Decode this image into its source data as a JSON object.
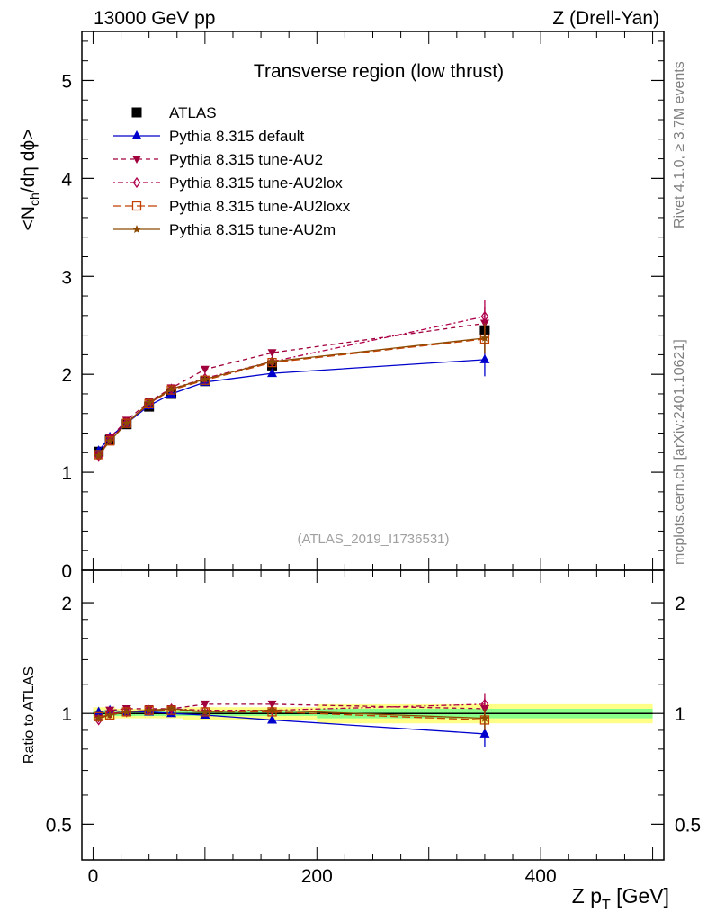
{
  "header": {
    "left": "13000 GeV pp",
    "right": "Z (Drell-Yan)"
  },
  "side_text": {
    "rivet": "Rivet 4.1.0, ≥ 3.7M events",
    "mcplots": "mcplots.cern.ch [arXiv:2401.10621]"
  },
  "chart_data": [
    {
      "type": "scatter",
      "panel": "main",
      "title": "Transverse region (low thrust)",
      "ylabel": "<N_ch/dη dϕ>",
      "xlim": [
        -10,
        510
      ],
      "ylim": [
        0,
        5.5
      ],
      "yticks": [
        0,
        1,
        2,
        3,
        4,
        5
      ],
      "watermark": "(ATLAS_2019_I1736531)",
      "legend_position": "top-left",
      "x": [
        5,
        15,
        30,
        50,
        70,
        100,
        160,
        350
      ],
      "series": [
        {
          "name": "ATLAS",
          "color": "#000000",
          "marker": "square",
          "dash": "none",
          "values": [
            1.21,
            1.33,
            1.49,
            1.67,
            1.8,
            1.93,
            2.09,
            2.45
          ]
        },
        {
          "name": "Pythia 8.315 default",
          "color": "#0000cc",
          "marker": "triangle-up",
          "dash": "solid",
          "values": [
            1.22,
            1.36,
            1.5,
            1.68,
            1.8,
            1.92,
            2.01,
            2.15
          ],
          "errors": [
            0,
            0,
            0,
            0,
            0,
            0,
            0.03,
            0.17
          ]
        },
        {
          "name": "Pythia 8.315 tune-AU2",
          "color": "#a0003c",
          "marker": "triangle-down",
          "dash": "5,4",
          "values": [
            1.17,
            1.35,
            1.53,
            1.72,
            1.86,
            2.05,
            2.22,
            2.52
          ],
          "errors": [
            0,
            0,
            0,
            0,
            0,
            0,
            0.03,
            0.17
          ]
        },
        {
          "name": "Pythia 8.315 tune-AU2lox",
          "color": "#b0004c",
          "marker": "diamond-open",
          "dash": "2,3,6,3",
          "values": [
            1.16,
            1.33,
            1.51,
            1.7,
            1.85,
            1.96,
            2.13,
            2.59
          ],
          "errors": [
            0,
            0,
            0,
            0,
            0,
            0,
            0.03,
            0.17
          ]
        },
        {
          "name": "Pythia 8.315 tune-AU2loxx",
          "color": "#c04000",
          "marker": "square-open",
          "dash": "9,4",
          "values": [
            1.18,
            1.32,
            1.5,
            1.7,
            1.84,
            1.94,
            2.12,
            2.36
          ],
          "errors": [
            0,
            0,
            0,
            0,
            0,
            0,
            0.03,
            0.15
          ]
        },
        {
          "name": "Pythia 8.315 tune-AU2m",
          "color": "#8c4a00",
          "marker": "star",
          "dash": "solid",
          "values": [
            1.17,
            1.32,
            1.5,
            1.71,
            1.85,
            1.95,
            2.13,
            2.37
          ],
          "errors": [
            0,
            0,
            0,
            0,
            0,
            0,
            0.03,
            0.15
          ]
        }
      ]
    },
    {
      "type": "line",
      "panel": "ratio",
      "ylabel": "Ratio to ATLAS",
      "xlabel": "Z p_T [GeV]",
      "xlim": [
        -10,
        510
      ],
      "ylim": [
        0.4,
        2.45
      ],
      "yticks": [
        0.5,
        1,
        2
      ],
      "yticklabels": [
        "0.5",
        "1",
        "2"
      ],
      "xticks": [
        0,
        200,
        400
      ],
      "xticklabels": [
        "0",
        "200",
        "400"
      ],
      "bands": [
        {
          "name": "ATLAS total uncertainty",
          "color": "#ffff88",
          "x0": [
            0,
            10,
            20,
            40,
            60,
            80,
            120,
            200
          ],
          "x1": [
            10,
            20,
            40,
            60,
            80,
            120,
            200,
            500
          ],
          "lo": [
            0.96,
            0.96,
            0.97,
            0.97,
            0.97,
            0.96,
            0.96,
            0.94
          ],
          "hi": [
            1.04,
            1.04,
            1.03,
            1.03,
            1.03,
            1.04,
            1.04,
            1.06
          ]
        },
        {
          "name": "ATLAS statistical uncertainty",
          "color": "#88ff88",
          "x0": [
            0,
            10,
            20,
            40,
            60,
            80,
            120,
            200
          ],
          "x1": [
            10,
            20,
            40,
            60,
            80,
            120,
            200,
            500
          ],
          "lo": [
            0.985,
            0.985,
            0.985,
            0.985,
            0.985,
            0.985,
            0.985,
            0.97
          ],
          "hi": [
            1.015,
            1.015,
            1.015,
            1.015,
            1.015,
            1.015,
            1.015,
            1.03
          ]
        }
      ],
      "x": [
        5,
        15,
        30,
        50,
        70,
        100,
        160,
        350
      ],
      "series": [
        {
          "name": "Pythia 8.315 default",
          "values": [
            1.01,
            1.02,
            1.01,
            1.01,
            1.0,
            0.99,
            0.96,
            0.88
          ],
          "errors": [
            0,
            0,
            0,
            0,
            0,
            0,
            0.015,
            0.07
          ]
        },
        {
          "name": "Pythia 8.315 tune-AU2",
          "values": [
            0.97,
            1.02,
            1.03,
            1.03,
            1.03,
            1.06,
            1.06,
            1.03
          ],
          "errors": [
            0,
            0,
            0,
            0,
            0,
            0,
            0.015,
            0.07
          ]
        },
        {
          "name": "Pythia 8.315 tune-AU2lox",
          "values": [
            0.96,
            1.0,
            1.01,
            1.02,
            1.03,
            1.02,
            1.02,
            1.06
          ],
          "errors": [
            0,
            0,
            0,
            0,
            0,
            0,
            0.015,
            0.07
          ]
        },
        {
          "name": "Pythia 8.315 tune-AU2loxx",
          "values": [
            0.98,
            0.99,
            1.01,
            1.02,
            1.02,
            1.01,
            1.01,
            0.96
          ],
          "errors": [
            0,
            0,
            0,
            0,
            0,
            0,
            0.015,
            0.06
          ]
        },
        {
          "name": "Pythia 8.315 tune-AU2m",
          "values": [
            0.97,
            0.99,
            1.01,
            1.02,
            1.03,
            1.01,
            1.02,
            0.97
          ],
          "errors": [
            0,
            0,
            0,
            0,
            0,
            0,
            0.015,
            0.06
          ]
        }
      ]
    }
  ]
}
